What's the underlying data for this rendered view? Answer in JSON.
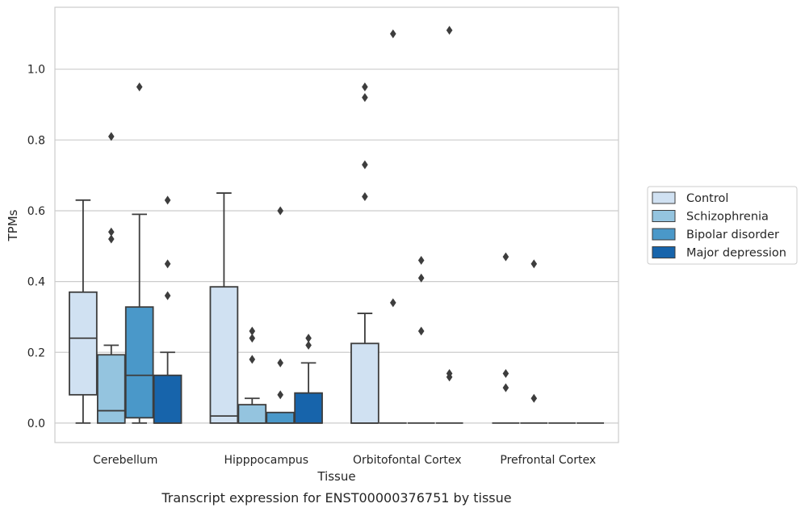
{
  "chart_data": {
    "type": "box",
    "title": "",
    "xlabel": "Tissue",
    "ylabel": "TPMs",
    "caption": "Transcript expression for ENST00000376751 by tissue",
    "ylim": [
      -0.055,
      1.175
    ],
    "yticks": [
      "0.0",
      "0.2",
      "0.4",
      "0.6",
      "0.8",
      "1.0"
    ],
    "grid": "horizontal",
    "legend_position": "right",
    "categories": [
      "Cerebellum",
      "Hipppocampus",
      "Orbitofontal Cortex",
      "Prefrontal Cortex"
    ],
    "series": [
      {
        "name": "Control",
        "color": "#d0e1f2",
        "boxes": [
          {
            "whislo": 0.0,
            "q1": 0.08,
            "med": 0.24,
            "q3": 0.37,
            "whishi": 0.63,
            "fliers": []
          },
          {
            "whislo": 0.0,
            "q1": 0.0,
            "med": 0.02,
            "q3": 0.385,
            "whishi": 0.65,
            "fliers": []
          },
          {
            "whislo": 0.0,
            "q1": 0.0,
            "med": 0.0,
            "q3": 0.225,
            "whishi": 0.31,
            "fliers": [
              0.64,
              0.73,
              0.92,
              0.95
            ]
          },
          {
            "whislo": 0.0,
            "q1": 0.0,
            "med": 0.0,
            "q3": 0.0,
            "whishi": 0.0,
            "fliers": [
              0.1,
              0.14,
              0.47
            ]
          }
        ]
      },
      {
        "name": "Schizophrenia",
        "color": "#94c4df",
        "boxes": [
          {
            "whislo": 0.0,
            "q1": 0.0,
            "med": 0.035,
            "q3": 0.193,
            "whishi": 0.22,
            "fliers": [
              0.52,
              0.54,
              0.81
            ]
          },
          {
            "whislo": 0.0,
            "q1": 0.0,
            "med": 0.0,
            "q3": 0.052,
            "whishi": 0.07,
            "fliers": [
              0.18,
              0.24,
              0.26
            ]
          },
          {
            "whislo": 0.0,
            "q1": 0.0,
            "med": 0.0,
            "q3": 0.0,
            "whishi": 0.0,
            "fliers": [
              0.34,
              1.1
            ]
          },
          {
            "whislo": 0.0,
            "q1": 0.0,
            "med": 0.0,
            "q3": 0.0,
            "whishi": 0.0,
            "fliers": [
              0.07,
              0.45
            ]
          }
        ]
      },
      {
        "name": "Bipolar disorder",
        "color": "#4a98c9",
        "boxes": [
          {
            "whislo": 0.0,
            "q1": 0.015,
            "med": 0.135,
            "q3": 0.328,
            "whishi": 0.59,
            "fliers": [
              0.95
            ]
          },
          {
            "whislo": 0.0,
            "q1": 0.0,
            "med": 0.0,
            "q3": 0.03,
            "whishi": 0.03,
            "fliers": [
              0.08,
              0.17,
              0.6
            ]
          },
          {
            "whislo": 0.0,
            "q1": 0.0,
            "med": 0.0,
            "q3": 0.0,
            "whishi": 0.0,
            "fliers": [
              0.26,
              0.41,
              0.46
            ]
          },
          {
            "whislo": 0.0,
            "q1": 0.0,
            "med": 0.0,
            "q3": 0.0,
            "whishi": 0.0,
            "fliers": []
          }
        ]
      },
      {
        "name": "Major depression",
        "color": "#1764ab",
        "boxes": [
          {
            "whislo": 0.0,
            "q1": 0.0,
            "med": 0.0,
            "q3": 0.135,
            "whishi": 0.2,
            "fliers": [
              0.36,
              0.45,
              0.63
            ]
          },
          {
            "whislo": 0.0,
            "q1": 0.0,
            "med": 0.0,
            "q3": 0.085,
            "whishi": 0.17,
            "fliers": [
              0.22,
              0.24
            ]
          },
          {
            "whislo": 0.0,
            "q1": 0.0,
            "med": 0.0,
            "q3": 0.0,
            "whishi": 0.0,
            "fliers": [
              0.13,
              0.14,
              1.11
            ]
          },
          {
            "whislo": 0.0,
            "q1": 0.0,
            "med": 0.0,
            "q3": 0.0,
            "whishi": 0.0,
            "fliers": []
          }
        ]
      }
    ]
  }
}
